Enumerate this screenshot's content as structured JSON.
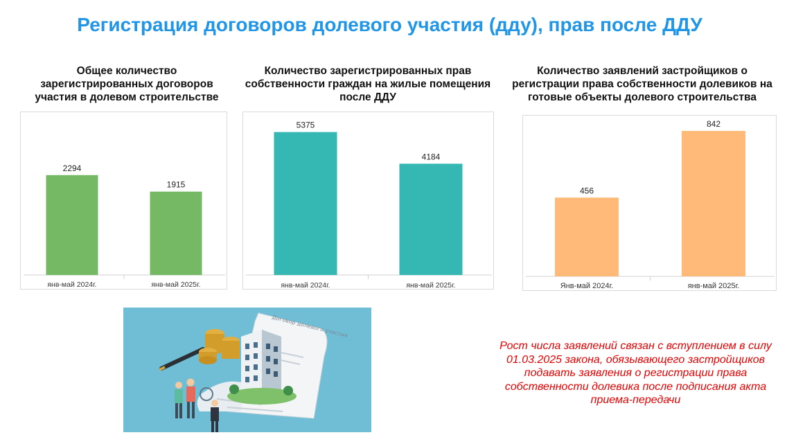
{
  "title": "Регистрация договоров долевого участия (дду), прав после ДДУ",
  "colors": {
    "title": "#2196e6",
    "green": "#76b964",
    "teal": "#35b8b3",
    "orange": "#ffb978",
    "note": "#e60000"
  },
  "note": "Рост числа заявлений связан с вступлением в силу 01.03.2025 закона, обязывающего застройщиков подавать заявления о регистрации права собственности долевика после подписания акта приема-передачи",
  "illustration": {
    "document_text": "Договор долевого участия"
  },
  "chart_data": [
    {
      "type": "bar",
      "title": "Общее количество зарегистрированных договоров участия в долевом строительстве",
      "categories": [
        "янв-май 2024г.",
        "янв-май 2025г."
      ],
      "values": [
        2294,
        1915
      ],
      "value_labels": [
        "2294",
        "1915"
      ],
      "color": "#76b964",
      "ylim": [
        0,
        3500
      ]
    },
    {
      "type": "bar",
      "title": "Количество зарегистрированных прав собственности граждан на жилые помещения после ДДУ",
      "categories": [
        "янв-май 2024г.",
        "янв-май 2025г."
      ],
      "values": [
        5375,
        4184
      ],
      "value_labels": [
        "5375",
        "4184"
      ],
      "color": "#35b8b3",
      "ylim": [
        0,
        5600
      ]
    },
    {
      "type": "bar",
      "title": "Количество заявлений застройщиков о регистрации права собственности долевиков на готовые объекты долевого строительства",
      "categories": [
        "Янв-май 2024г.",
        "янв-май 2025г."
      ],
      "values": [
        456,
        842
      ],
      "value_labels": [
        "456",
        "842"
      ],
      "color": "#ffb978",
      "ylim": [
        0,
        870
      ]
    }
  ]
}
